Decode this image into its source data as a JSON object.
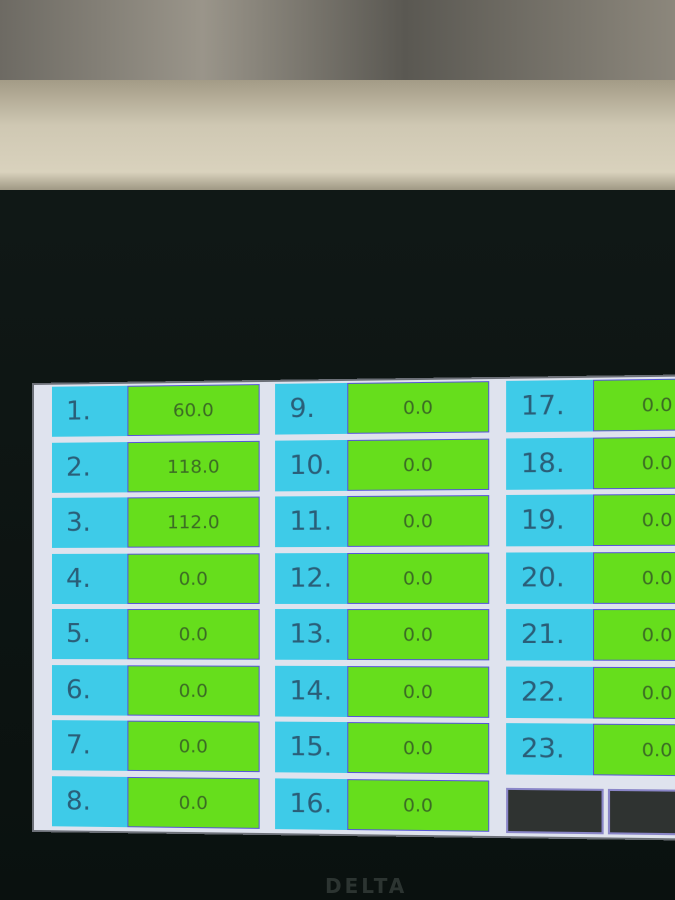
{
  "columns": [
    {
      "rows": [
        {
          "label": "1.",
          "value": "60.0"
        },
        {
          "label": "2.",
          "value": "118.0"
        },
        {
          "label": "3.",
          "value": "112.0"
        },
        {
          "label": "4.",
          "value": "0.0"
        },
        {
          "label": "5.",
          "value": "0.0"
        },
        {
          "label": "6.",
          "value": "0.0"
        },
        {
          "label": "7.",
          "value": "0.0"
        },
        {
          "label": "8.",
          "value": "0.0"
        }
      ]
    },
    {
      "rows": [
        {
          "label": "9.",
          "value": "0.0"
        },
        {
          "label": "10.",
          "value": "0.0"
        },
        {
          "label": "11.",
          "value": "0.0"
        },
        {
          "label": "12.",
          "value": "0.0"
        },
        {
          "label": "13.",
          "value": "0.0"
        },
        {
          "label": "14.",
          "value": "0.0"
        },
        {
          "label": "15.",
          "value": "0.0"
        },
        {
          "label": "16.",
          "value": "0.0"
        }
      ]
    },
    {
      "rows": [
        {
          "label": "17.",
          "value": "0.0"
        },
        {
          "label": "18.",
          "value": "0.0"
        },
        {
          "label": "19.",
          "value": "0.0"
        },
        {
          "label": "20.",
          "value": "0.0"
        },
        {
          "label": "21.",
          "value": "0.0"
        },
        {
          "label": "22.",
          "value": "0.0"
        },
        {
          "label": "23.",
          "value": "0.0"
        }
      ]
    }
  ],
  "brand": "DELTA",
  "colors": {
    "label_bg": "#3ecbe8",
    "value_bg": "#66de1c",
    "bezel": "#0c1412"
  }
}
